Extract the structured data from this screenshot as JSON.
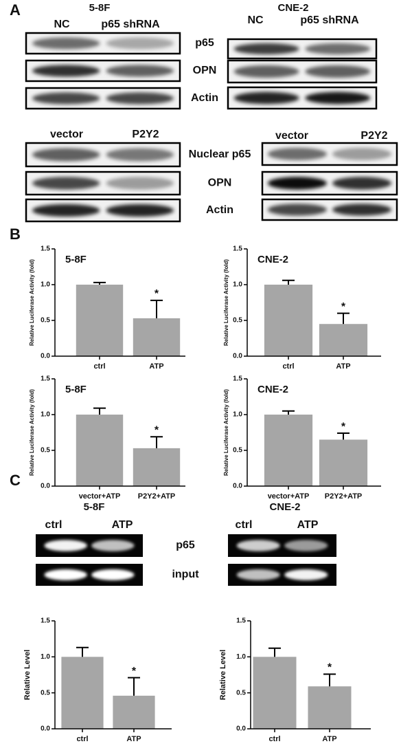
{
  "panels": [
    "A",
    "B",
    "C"
  ],
  "blots": [
    {
      "title": "5-8F",
      "lanes": [
        "NC",
        "p65 shRNA"
      ],
      "rows": [
        "p65",
        "OPN",
        "Actin"
      ]
    },
    {
      "title": "CNE-2",
      "lanes": [
        "NC",
        "p65 shRNA"
      ]
    },
    {
      "lanes": [
        "vector",
        "P2Y2"
      ],
      "rows": [
        "Nuclear p65",
        "OPN",
        "Actin"
      ]
    },
    {
      "lanes": [
        "vector",
        "P2Y2"
      ]
    }
  ],
  "gels": [
    {
      "title": "5-8F",
      "lanes": [
        "ctrl",
        "ATP"
      ],
      "rows": [
        "p65",
        "input"
      ]
    },
    {
      "title": "CNE-2",
      "lanes": [
        "ctrl",
        "ATP"
      ]
    }
  ],
  "chart_data": [
    {
      "type": "bar",
      "title": "5-8F",
      "y_label": "Relative Luciferase Activity (fold)",
      "categories": [
        "ctrl",
        "ATP"
      ],
      "values": [
        1.0,
        0.53
      ],
      "errors": [
        0.03,
        0.25
      ],
      "markers": [
        null,
        "*"
      ],
      "color": "#a6a6a6",
      "ylim": [
        0,
        1.5
      ],
      "yticks": [
        {
          "value": 0,
          "label": "0.0"
        },
        {
          "value": 0.5,
          "label": "0.5"
        },
        {
          "value": 1,
          "label": "1.0"
        },
        {
          "value": 1.5,
          "label": "1.5"
        }
      ]
    },
    {
      "type": "bar",
      "title": "CNE-2",
      "y_label": "Relative Luciferase Activity (fold)",
      "categories": [
        "ctrl",
        "ATP"
      ],
      "values": [
        1.0,
        0.45
      ],
      "errors": [
        0.06,
        0.15
      ],
      "markers": [
        null,
        "*"
      ],
      "color": "#a6a6a6",
      "ylim": [
        0,
        1.5
      ],
      "yticks": [
        {
          "value": 0,
          "label": "0.0"
        },
        {
          "value": 0.5,
          "label": "0.5"
        },
        {
          "value": 1,
          "label": "1.0"
        },
        {
          "value": 1.5,
          "label": "1.5"
        }
      ]
    },
    {
      "type": "bar",
      "title": "5-8F",
      "y_label": "Relative Luciferase Activity (fold)",
      "categories": [
        "vector+ATP",
        "P2Y2+ATP"
      ],
      "values": [
        1.0,
        0.53
      ],
      "errors": [
        0.09,
        0.16
      ],
      "markers": [
        null,
        "*"
      ],
      "color": "#a6a6a6",
      "ylim": [
        0,
        1.5
      ],
      "yticks": [
        {
          "value": 0,
          "label": "0.0"
        },
        {
          "value": 0.5,
          "label": "0.5"
        },
        {
          "value": 1,
          "label": "1.0"
        },
        {
          "value": 1.5,
          "label": "1.5"
        }
      ]
    },
    {
      "type": "bar",
      "title": "CNE-2",
      "y_label": "Relative Luciferase Activity (fold)",
      "categories": [
        "vector+ATP",
        "P2Y2+ATP"
      ],
      "values": [
        1.0,
        0.65
      ],
      "errors": [
        0.05,
        0.09
      ],
      "markers": [
        null,
        "*"
      ],
      "color": "#a6a6a6",
      "ylim": [
        0,
        1.5
      ],
      "yticks": [
        {
          "value": 0,
          "label": "0.0"
        },
        {
          "value": 0.5,
          "label": "0.5"
        },
        {
          "value": 1,
          "label": "1.0"
        },
        {
          "value": 1.5,
          "label": "1.5"
        }
      ]
    },
    {
      "type": "bar",
      "y_label": "Relative Level",
      "categories": [
        "ctrl",
        "ATP"
      ],
      "values": [
        1.0,
        0.46
      ],
      "errors": [
        0.13,
        0.25
      ],
      "markers": [
        null,
        "*"
      ],
      "color": "#a6a6a6",
      "ylim": [
        0,
        1.5
      ],
      "yticks": [
        {
          "value": 0,
          "label": "0.0"
        },
        {
          "value": 0.5,
          "label": "0.5"
        },
        {
          "value": 1,
          "label": "1.0"
        },
        {
          "value": 1.5,
          "label": "1.5"
        }
      ]
    },
    {
      "type": "bar",
      "y_label": "Relative Level",
      "categories": [
        "ctrl",
        "ATP"
      ],
      "values": [
        1.0,
        0.59
      ],
      "errors": [
        0.12,
        0.17
      ],
      "markers": [
        null,
        "*"
      ],
      "color": "#a6a6a6",
      "ylim": [
        0,
        1.5
      ],
      "yticks": [
        {
          "value": 0,
          "label": "0.0"
        },
        {
          "value": 0.5,
          "label": "0.5"
        },
        {
          "value": 1,
          "label": "1.0"
        },
        {
          "value": 1.5,
          "label": "1.5"
        }
      ]
    }
  ]
}
